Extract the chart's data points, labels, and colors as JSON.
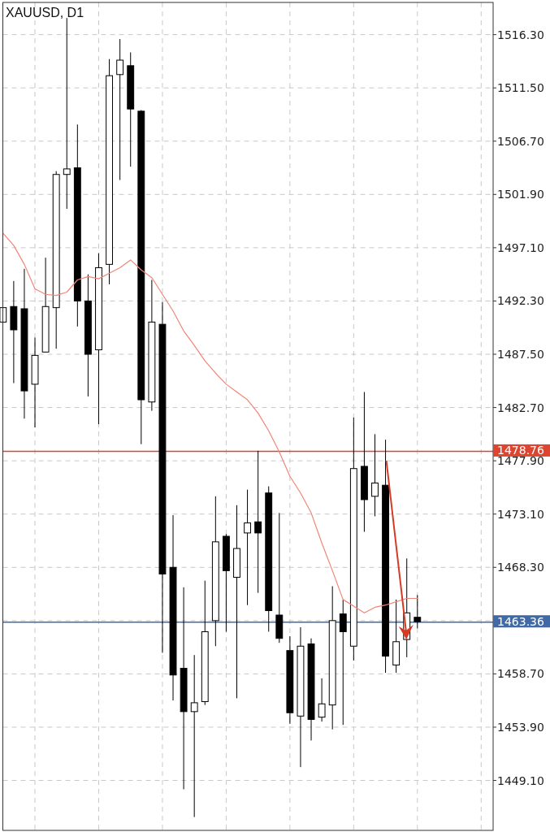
{
  "chart_data": {
    "type": "candlestick",
    "title": "XAUUSD, D1",
    "categories": [
      null,
      null,
      null,
      null,
      null,
      null,
      null,
      null,
      null,
      null,
      null,
      null,
      null,
      null,
      null,
      null,
      null,
      null,
      null,
      null,
      null,
      null,
      null,
      null,
      null,
      null,
      null,
      null,
      null,
      null,
      null,
      null,
      null,
      null,
      null,
      null,
      null,
      null,
      null,
      null
    ],
    "series": [
      {
        "type": "line",
        "color": "#f08678",
        "values": [
          1498.4,
          1497.3,
          1495.6,
          1493.4,
          1492.9,
          1492.8,
          1493.1,
          1494.2,
          1494.5,
          1494.3,
          1494.8,
          1495.3,
          1496.0,
          1495.1,
          1494.4,
          1492.9,
          1491.4,
          1489.6,
          1488.3,
          1486.9,
          1485.8,
          1484.8,
          1484.1,
          1483.4,
          1482.2,
          1480.6,
          1478.7,
          1476.5,
          1475.0,
          1473.2,
          1470.5,
          1468.0,
          1465.4,
          1464.8,
          1464.2,
          1464.7,
          1464.9,
          1465.2,
          1465.5,
          1465.5
        ]
      },
      {
        "color": "#000000",
        "ohlc": [
          [
            1490.4,
            1491.7,
            1490.4,
            1491.7
          ],
          [
            1491.8,
            1494.1,
            1484.9,
            1489.7
          ],
          [
            1491.6,
            1495.2,
            1481.7,
            1484.2
          ],
          [
            1484.8,
            1489.0,
            1480.9,
            1487.4
          ],
          [
            1487.7,
            1496.2,
            1487.7,
            1491.8
          ],
          [
            1491.7,
            1504.0,
            1488.0,
            1503.7
          ],
          [
            1503.7,
            1517.8,
            1500.6,
            1504.2
          ],
          [
            1504.3,
            1508.2,
            1490.0,
            1492.3
          ],
          [
            1492.3,
            1494.7,
            1483.7,
            1487.5
          ],
          [
            1487.9,
            1496.6,
            1481.2,
            1495.3
          ],
          [
            1495.6,
            1514.1,
            1493.8,
            1512.6
          ],
          [
            1512.7,
            1515.9,
            1503.2,
            1514.0
          ],
          [
            1513.5,
            1514.7,
            1504.4,
            1509.6
          ],
          [
            1509.4,
            1509.5,
            1479.4,
            1483.4
          ],
          [
            1483.2,
            1494.2,
            1482.4,
            1490.4
          ],
          [
            1490.2,
            1492.2,
            1460.6,
            1467.7
          ],
          [
            1468.3,
            1473.0,
            1456.3,
            1458.6
          ],
          [
            1459.2,
            1466.5,
            1448.3,
            1455.3
          ],
          [
            1455.3,
            1460.4,
            1445.8,
            1456.1
          ],
          [
            1456.2,
            1467.1,
            1455.9,
            1462.5
          ],
          [
            1463.5,
            1474.7,
            1461.2,
            1470.6
          ],
          [
            1471.1,
            1471.3,
            1462.5,
            1468.0
          ],
          [
            1467.4,
            1473.9,
            1456.5,
            1470.0
          ],
          [
            1471.4,
            1475.3,
            1464.9,
            1472.3
          ],
          [
            1472.4,
            1478.8,
            1466.0,
            1471.4
          ],
          [
            1475.0,
            1475.6,
            1462.5,
            1464.4
          ],
          [
            1464.0,
            1473.2,
            1461.5,
            1461.9
          ],
          [
            1460.8,
            1462.1,
            1454.2,
            1455.2
          ],
          [
            1454.9,
            1462.9,
            1450.3,
            1461.2
          ],
          [
            1461.4,
            1461.9,
            1452.7,
            1454.6
          ],
          [
            1454.8,
            1458.3,
            1454.4,
            1456.0
          ],
          [
            1455.9,
            1466.6,
            1453.7,
            1463.5
          ],
          [
            1464.1,
            1465.4,
            1454.1,
            1462.5
          ],
          [
            1461.2,
            1481.8,
            1459.9,
            1477.2
          ],
          [
            1477.4,
            1484.1,
            1471.5,
            1474.4
          ],
          [
            1474.7,
            1480.3,
            1472.9,
            1475.9
          ],
          [
            1475.7,
            1479.8,
            1458.8,
            1460.3
          ],
          [
            1459.5,
            1465.4,
            1458.8,
            1461.6
          ],
          [
            1461.8,
            1469.1,
            1460.2,
            1464.2
          ],
          [
            1463.8,
            1465.8,
            1462.8,
            1463.4
          ]
        ]
      }
    ],
    "ylim": [
      1444.6,
      1519.2
    ],
    "yticks": [
      {
        "value": 1516.3,
        "label": "1516.30"
      },
      {
        "value": 1511.5,
        "label": "1511.50"
      },
      {
        "value": 1506.7,
        "label": "1506.70"
      },
      {
        "value": 1501.9,
        "label": "1501.90"
      },
      {
        "value": 1497.1,
        "label": "1497.10"
      },
      {
        "value": 1492.3,
        "label": "1492.30"
      },
      {
        "value": 1487.5,
        "label": "1487.50"
      },
      {
        "value": 1482.7,
        "label": "1482.70"
      },
      {
        "value": 1477.9,
        "label": "1477.90"
      },
      {
        "value": 1473.1,
        "label": "1473.10"
      },
      {
        "value": 1468.3,
        "label": "1468.30"
      },
      {
        "value": 1463.5,
        "label": null
      },
      {
        "value": 1458.7,
        "label": "1458.70"
      },
      {
        "value": 1453.9,
        "label": "1453.90"
      },
      {
        "value": 1449.1,
        "label": "1449.10"
      }
    ],
    "ref_lines": [
      {
        "axis": "y",
        "value": 1478.76,
        "label": "1478.76",
        "color": "#dc4530"
      },
      {
        "axis": "y",
        "value": 1463.36,
        "label": "1463.36",
        "color": "#3f6aa5"
      }
    ],
    "grid": true
  }
}
